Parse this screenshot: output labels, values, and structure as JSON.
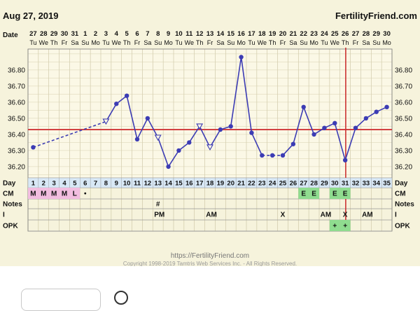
{
  "header": {
    "date": "Aug 27, 2019",
    "site": "FertilityFriend.com",
    "date_row_label": "Date"
  },
  "footer": {
    "url": "https://FertilityFriend.com",
    "copyright": "Copyright 1998-2019 Tamtris Web Services Inc. - All Rights Reserved."
  },
  "chart_data": {
    "type": "line",
    "title": "",
    "xlabel": "Day",
    "ylabel": "",
    "ylim": [
      36.13,
      36.93
    ],
    "yticks": [
      "36.20",
      "36.30",
      "36.40",
      "36.50",
      "36.60",
      "36.70",
      "36.80"
    ],
    "grid": true,
    "dates": [
      "27",
      "28",
      "29",
      "30",
      "31",
      "1",
      "2",
      "3",
      "4",
      "5",
      "6",
      "7",
      "8",
      "9",
      "10",
      "11",
      "12",
      "13",
      "14",
      "15",
      "16",
      "17",
      "18",
      "19",
      "20",
      "21",
      "22",
      "23",
      "24",
      "25",
      "26",
      "27",
      "28",
      "29",
      "30"
    ],
    "weekdays": [
      "Tu",
      "We",
      "Th",
      "Fr",
      "Sa",
      "Su",
      "Mo",
      "Tu",
      "We",
      "Th",
      "Fr",
      "Sa",
      "Su",
      "Mo",
      "Tu",
      "We",
      "Th",
      "Fr",
      "Sa",
      "Su",
      "Mo",
      "Tu",
      "We",
      "Th",
      "Fr",
      "Sa",
      "Su",
      "Mo",
      "Tu",
      "We",
      "Th",
      "Fr",
      "Sa",
      "Su",
      "Mo"
    ],
    "days": [
      1,
      2,
      3,
      4,
      5,
      6,
      7,
      8,
      9,
      10,
      11,
      12,
      13,
      14,
      15,
      16,
      17,
      18,
      19,
      20,
      21,
      22,
      23,
      24,
      25,
      26,
      27,
      28,
      29,
      30,
      31,
      32,
      33,
      34,
      35
    ],
    "temps": [
      36.32,
      null,
      null,
      null,
      null,
      null,
      null,
      36.48,
      36.59,
      36.64,
      36.37,
      36.5,
      36.38,
      36.2,
      36.3,
      36.35,
      36.45,
      36.32,
      36.43,
      36.45,
      36.88,
      36.41,
      36.27,
      36.27,
      36.27,
      36.34,
      36.57,
      36.4,
      36.44,
      36.47,
      36.24,
      36.44,
      36.5,
      36.54,
      36.57
    ],
    "open_markers": [
      8,
      13,
      17,
      18
    ],
    "dashed_segments": [
      [
        1,
        8
      ],
      [
        23,
        25
      ]
    ],
    "coverline": 36.43,
    "ovulation_day": 31,
    "rows": {
      "cm_label": "CM",
      "notes_label": "Notes",
      "i_label": "I",
      "opk_label": "OPK",
      "cm": [
        "M",
        "M",
        "M",
        "M",
        "L",
        "•",
        "",
        "",
        "",
        "",
        "",
        "",
        "",
        "",
        "",
        "",
        "",
        "",
        "",
        "",
        "",
        "",
        "",
        "",
        "",
        "",
        "E",
        "E",
        "",
        "E",
        "E",
        "",
        "",
        "",
        ""
      ],
      "notes": [
        "",
        "",
        "",
        "",
        "",
        "",
        "",
        "",
        "",
        "",
        "",
        "",
        "#",
        "",
        "",
        "",
        "",
        "",
        "",
        "",
        "",
        "",
        "",
        "",
        "",
        "",
        "",
        "",
        "",
        "",
        "",
        "",
        "",
        "",
        ""
      ],
      "intercourse": [
        "",
        "",
        "",
        "",
        "",
        "",
        "",
        "",
        "",
        "",
        "",
        "",
        "PM",
        "",
        "",
        "",
        "",
        "AM",
        "",
        "",
        "",
        "",
        "",
        "",
        "X",
        "",
        "",
        "",
        "AM",
        "",
        "X",
        "",
        "AM",
        "",
        ""
      ],
      "opk": [
        "",
        "",
        "",
        "",
        "",
        "",
        "",
        "",
        "",
        "",
        "",
        "",
        "",
        "",
        "",
        "",
        "",
        "",
        "",
        "",
        "",
        "",
        "",
        "",
        "",
        "",
        "",
        "",
        "",
        "+",
        "+",
        "",
        "",
        "",
        ""
      ]
    },
    "colors": {
      "line": "#3c3cb4",
      "coverline": "#d24141",
      "ovulation": "#cc3333",
      "cm_m_bg": "#f2bde0",
      "cm_e_bg": "#8fdc8f",
      "opk_bg": "#8fdc8f",
      "day_row_bg": "#d8e8f6"
    }
  }
}
